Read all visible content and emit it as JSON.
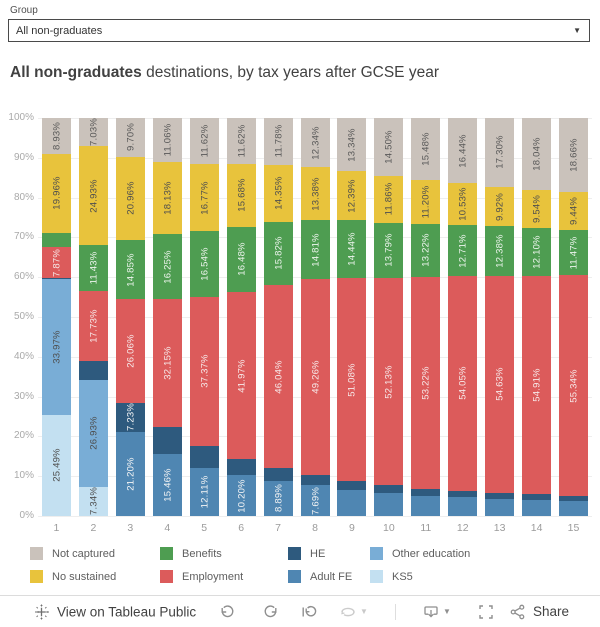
{
  "header": {
    "group_label": "Group",
    "dropdown_value": "All non-graduates"
  },
  "title": {
    "bold": "All non-graduates",
    "rest": " destinations, by tax years after GCSE year"
  },
  "chart_data": {
    "type": "bar",
    "stacked": true,
    "stacking": "percent",
    "title": "All non-graduates destinations, by tax years after GCSE year",
    "xlabel": "tax years after GCSE year",
    "ylabel": "",
    "ylim": [
      0,
      100
    ],
    "grid": true,
    "legend_position": "bottom",
    "categories": [
      "1",
      "2",
      "3",
      "4",
      "5",
      "6",
      "7",
      "8",
      "9",
      "10",
      "11",
      "12",
      "13",
      "14",
      "15"
    ],
    "yticks": [
      "0%",
      "10%",
      "20%",
      "30%",
      "40%",
      "50%",
      "60%",
      "70%",
      "80%",
      "90%",
      "100%"
    ],
    "label_format": "0.00%",
    "series": [
      {
        "name": "KS5",
        "color": "#c3e0f1",
        "label_color": "#4e4e4e",
        "values": [
          25.49,
          7.34,
          0,
          0,
          0,
          0,
          0,
          0,
          0,
          0,
          0,
          0,
          0,
          0,
          0
        ],
        "labels_shown": [
          true,
          true,
          false,
          false,
          false,
          false,
          false,
          false,
          false,
          false,
          false,
          false,
          false,
          false,
          false
        ]
      },
      {
        "name": "Other education",
        "color": "#79add6",
        "label_color": "#4e4e4e",
        "values": [
          33.97,
          26.93,
          0,
          0,
          0,
          0,
          0,
          0,
          0,
          0,
          0,
          0,
          0,
          0,
          0
        ],
        "labels_shown": [
          true,
          true,
          false,
          false,
          false,
          false,
          false,
          false,
          false,
          false,
          false,
          false,
          false,
          false,
          false
        ]
      },
      {
        "name": "Adult FE",
        "color": "#4f86b2",
        "label_color": "#f5f5f5",
        "values": [
          0,
          0,
          21.2,
          15.46,
          12.11,
          10.2,
          8.89,
          7.69,
          6.45,
          5.9,
          5.1,
          4.77,
          4.37,
          4.11,
          3.89
        ],
        "labels_shown": [
          false,
          false,
          true,
          true,
          true,
          true,
          true,
          true,
          false,
          false,
          false,
          false,
          false,
          false,
          false
        ]
      },
      {
        "name": "HE",
        "color": "#2e5a7e",
        "label_color": "#f5f5f5",
        "values": [
          0.25,
          4.61,
          7.23,
          6.95,
          5.59,
          4.05,
          3.12,
          2.52,
          2.3,
          1.82,
          1.78,
          1.5,
          1.4,
          1.3,
          1.2
        ],
        "labels_shown": [
          false,
          false,
          true,
          false,
          false,
          false,
          false,
          false,
          false,
          false,
          false,
          false,
          false,
          false,
          false
        ]
      },
      {
        "name": "Employment",
        "color": "#dc5b5b",
        "label_color": "#f7eaea",
        "values": [
          7.87,
          17.73,
          26.06,
          32.15,
          37.37,
          41.97,
          46.04,
          49.26,
          51.08,
          52.13,
          53.22,
          54.05,
          54.63,
          54.91,
          55.34
        ],
        "labels_shown": [
          true,
          true,
          true,
          true,
          true,
          true,
          true,
          true,
          true,
          true,
          true,
          true,
          true,
          true,
          true
        ]
      },
      {
        "name": "Benefits",
        "color": "#4e9d51",
        "label_color": "#eef5ee",
        "values": [
          3.53,
          11.43,
          14.85,
          16.25,
          16.54,
          16.48,
          15.82,
          14.81,
          14.44,
          13.79,
          13.22,
          12.71,
          12.38,
          12.1,
          11.47
        ],
        "labels_shown": [
          false,
          true,
          true,
          true,
          true,
          true,
          true,
          true,
          true,
          true,
          true,
          true,
          true,
          true,
          true
        ]
      },
      {
        "name": "No sustained",
        "color": "#e8c33c",
        "label_color": "#4e4e4e",
        "values": [
          19.96,
          24.93,
          20.96,
          18.13,
          16.77,
          15.68,
          14.35,
          13.38,
          12.39,
          11.86,
          11.2,
          10.53,
          9.92,
          9.54,
          9.44
        ],
        "labels_shown": [
          true,
          true,
          true,
          true,
          true,
          true,
          true,
          true,
          true,
          true,
          true,
          true,
          true,
          true,
          true
        ]
      },
      {
        "name": "Not captured",
        "color": "#cac2bb",
        "label_color": "#585858",
        "values": [
          8.93,
          7.03,
          9.7,
          11.06,
          11.62,
          11.62,
          11.78,
          12.34,
          13.34,
          14.5,
          15.48,
          16.44,
          17.3,
          18.04,
          18.66
        ],
        "labels_shown": [
          true,
          true,
          true,
          true,
          true,
          true,
          true,
          true,
          true,
          true,
          true,
          true,
          true,
          true,
          true
        ]
      }
    ]
  },
  "legend": {
    "columns": [
      [
        {
          "label": "Not captured",
          "color": "#cac2bb"
        },
        {
          "label": "No sustained",
          "color": "#e8c33c"
        }
      ],
      [
        {
          "label": "Benefits",
          "color": "#4e9d51"
        },
        {
          "label": "Employment",
          "color": "#dc5b5b"
        }
      ],
      [
        {
          "label": "HE",
          "color": "#2e5a7e"
        },
        {
          "label": "Adult FE",
          "color": "#4f86b2"
        }
      ],
      [
        {
          "label": "Other education",
          "color": "#79add6"
        },
        {
          "label": "KS5",
          "color": "#c3e0f1"
        }
      ]
    ]
  },
  "toolbar": {
    "view_on_label": "View on Tableau Public",
    "share_label": "Share"
  }
}
